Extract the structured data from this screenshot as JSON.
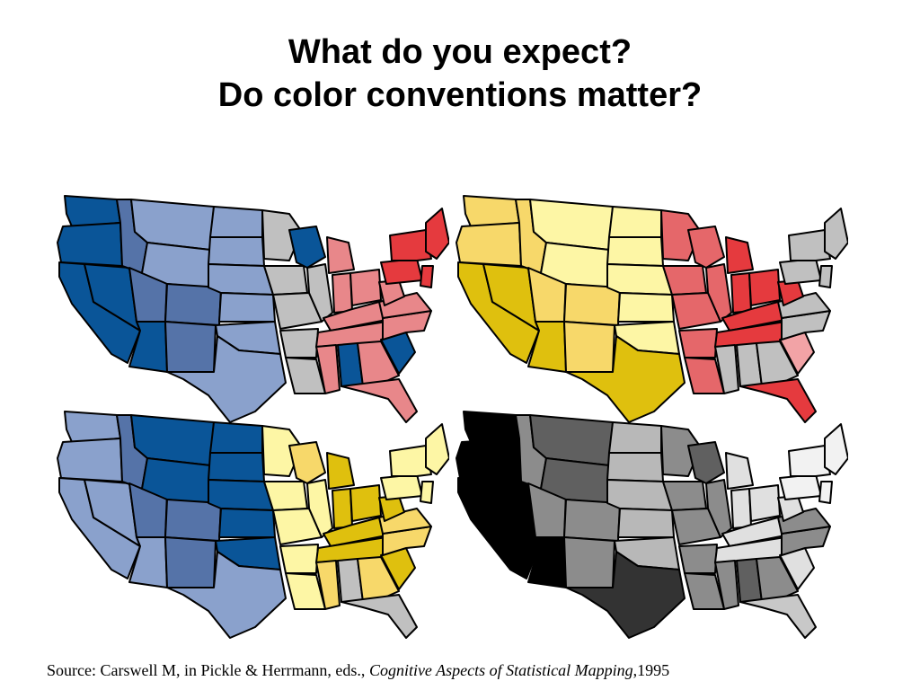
{
  "title": {
    "line1": "What do you expect?",
    "line2": "Do color conventions matter?"
  },
  "source": {
    "prefix": "Source: Carswell M,  in Pickle & Herrmann, eds., ",
    "book": "Cognitive Aspects of Statistical Mapping",
    "suffix": ",1995"
  },
  "maps": [
    {
      "id": "top-left",
      "scheme": "blue-gray-red",
      "colors": {
        "nw": "#0a5598",
        "west": "#0a5598",
        "rockies": "#5573a8",
        "mtn": "#8aa1cc",
        "plains": "#8aa1cc",
        "texas": "#8aa1cc",
        "gray_center": "#c0c0c0",
        "wisconsin": "#0a5598",
        "midwest": "#e8878a",
        "southeast": "#e8878a",
        "alabama": "#0a5598",
        "scarolina": "#0a5598",
        "northeast": "#e53a3e",
        "florida": "#e8878a"
      }
    },
    {
      "id": "top-right",
      "scheme": "yellow-red-gray",
      "colors": {
        "nw": "#f7d86a",
        "west": "#dfc00e",
        "rockies": "#f7d86a",
        "mtn": "#fdf6a5",
        "plains": "#fdf6a5",
        "texas": "#dfc00e",
        "gray_center": "#e5676a",
        "wisconsin": "#e5676a",
        "midwest": "#e53a3e",
        "southeast": "#c0c0c0",
        "alabama": "#c0c0c0",
        "scarolina": "#f2a3a6",
        "northeast": "#c0c0c0",
        "florida": "#e53a3e"
      }
    },
    {
      "id": "bottom-left",
      "scheme": "blue-yellow",
      "colors": {
        "nw": "#8aa1cc",
        "west": "#8aa1cc",
        "rockies": "#5573a8",
        "mtn": "#0a5598",
        "plains": "#0a5598",
        "texas": "#8aa1cc",
        "gray_center": "#fdf6a5",
        "wisconsin": "#f7d86a",
        "midwest": "#dfc00e",
        "southeast": "#f7d86a",
        "alabama": "#c0c0c0",
        "scarolina": "#dfc00e",
        "northeast": "#fdf6a5",
        "florida": "#c0c0c0"
      }
    },
    {
      "id": "bottom-right",
      "scheme": "grayscale",
      "colors": {
        "nw": "#000000",
        "west": "#000000",
        "rockies": "#8c8c8c",
        "mtn": "#606060",
        "plains": "#b8b8b8",
        "texas": "#333333",
        "gray_center": "#8c8c8c",
        "wisconsin": "#606060",
        "midwest": "#e0e0e0",
        "southeast": "#8c8c8c",
        "alabama": "#606060",
        "scarolina": "#e0e0e0",
        "northeast": "#f2f2f2",
        "florida": "#c8c8c8"
      }
    }
  ]
}
